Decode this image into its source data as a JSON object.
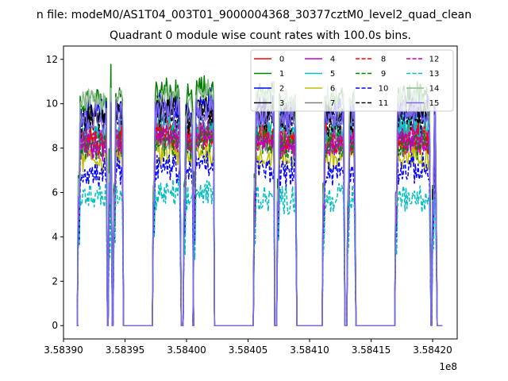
{
  "chart_data": {
    "type": "line",
    "suptitle": "n file: modeM0/AS1T04_003T01_9000004368_30377cztM0_level2_quad_clean",
    "title": "Quadrant 0 module wise count rates with 100.0s bins.",
    "xlabel": "",
    "ylabel": "",
    "x_offset_label": "1e8",
    "xlim": [
      3.5839,
      3.58422
    ],
    "ylim": [
      -0.6,
      12.6
    ],
    "x_ticks": [
      3.5839,
      3.58395,
      3.584,
      3.58405,
      3.5841,
      3.58415,
      3.5842
    ],
    "x_tick_labels": [
      "3.58390",
      "3.58395",
      "3.58400",
      "3.58405",
      "3.58410",
      "3.58415",
      "3.58420"
    ],
    "y_ticks": [
      0,
      2,
      4,
      6,
      8,
      10,
      12
    ],
    "y_tick_labels": [
      "0",
      "2",
      "4",
      "6",
      "8",
      "10",
      "12"
    ],
    "grid": false,
    "legend_position": "upper-right",
    "legend_columns": 4,
    "segments": [
      {
        "x": [
          3.583912,
          3.583935
        ],
        "level_mean": 8.6
      },
      {
        "x": [
          3.583937,
          3.583939
        ],
        "level_mean": 9.2
      },
      {
        "x": [
          3.583941,
          3.583948
        ],
        "level_mean": 8.8
      },
      {
        "x": [
          3.583973,
          3.583995
        ],
        "level_mean": 8.9
      },
      {
        "x": [
          3.583998,
          3.584005
        ],
        "level_mean": 8.6
      },
      {
        "x": [
          3.584006,
          3.584022
        ],
        "level_mean": 9.0
      },
      {
        "x": [
          3.584055,
          3.584071
        ],
        "level_mean": 8.8
      },
      {
        "x": [
          3.584074,
          3.584089
        ],
        "level_mean": 8.6
      },
      {
        "x": [
          3.584111,
          3.584128
        ],
        "level_mean": 8.7
      },
      {
        "x": [
          3.584131,
          3.584137
        ],
        "level_mean": 8.6
      },
      {
        "x": [
          3.58417,
          3.584198
        ],
        "level_mean": 8.8
      },
      {
        "x": [
          3.5842,
          3.584203
        ],
        "level_mean": 8.4
      }
    ],
    "gaps_value": 0,
    "series": [
      {
        "name": "0",
        "color": "#ff0000",
        "style": "solid",
        "mean_level": 8.6
      },
      {
        "name": "1",
        "color": "#008000",
        "style": "solid",
        "mean_level": 10.3
      },
      {
        "name": "2",
        "color": "#0000ff",
        "style": "solid",
        "mean_level": 9.7
      },
      {
        "name": "3",
        "color": "#000000",
        "style": "solid",
        "mean_level": 9.6
      },
      {
        "name": "4",
        "color": "#bf00bf",
        "style": "solid",
        "mean_level": 8.3
      },
      {
        "name": "5",
        "color": "#00bfbf",
        "style": "solid",
        "mean_level": 8.8
      },
      {
        "name": "6",
        "color": "#bfbf00",
        "style": "solid",
        "mean_level": 7.6
      },
      {
        "name": "7",
        "color": "#808080",
        "style": "solid",
        "mean_level": 8.3
      },
      {
        "name": "8",
        "color": "#ff0000",
        "style": "dashed",
        "mean_level": 8.4
      },
      {
        "name": "9",
        "color": "#008000",
        "style": "dashed",
        "mean_level": 8.2
      },
      {
        "name": "10",
        "color": "#0000ff",
        "style": "dashed",
        "mean_level": 7.0
      },
      {
        "name": "11",
        "color": "#000000",
        "style": "dashed",
        "mean_level": 9.3
      },
      {
        "name": "12",
        "color": "#bf00bf",
        "style": "dashed",
        "mean_level": 8.4
      },
      {
        "name": "13",
        "color": "#00bfbf",
        "style": "dashed",
        "mean_level": 5.8
      },
      {
        "name": "14",
        "color": "#8fbc8f",
        "style": "solid",
        "mean_level": 10.2
      },
      {
        "name": "15",
        "color": "#7b68ee",
        "style": "solid",
        "mean_level": 9.5
      }
    ]
  }
}
